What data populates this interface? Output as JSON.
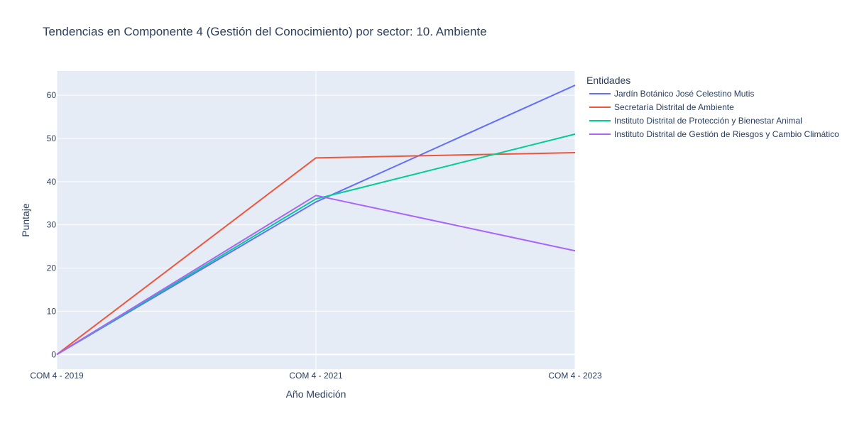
{
  "chart_data": {
    "type": "line",
    "title": "Tendencias en Componente 4 (Gestión del Conocimiento) por sector: 10. Ambiente",
    "xlabel": "Año Medición",
    "ylabel": "Puntaje",
    "categories": [
      "COM 4 - 2019",
      "COM 4 - 2021",
      "COM 4 - 2023"
    ],
    "ylim": [
      -3.4,
      65.6
    ],
    "yticks": [
      0,
      10,
      20,
      30,
      40,
      50,
      60
    ],
    "grid": true,
    "legend_title": "Entidades",
    "legend_position": "right",
    "series": [
      {
        "name": "Jardín Botánico José Celestino Mutis",
        "color": "#636efa",
        "values": [
          0,
          35.3,
          62.3
        ]
      },
      {
        "name": "Secretaría Distrital de Ambiente",
        "color": "#ef553b",
        "values": [
          0,
          45.5,
          46.7
        ]
      },
      {
        "name": "Instituto Distrital de Protección y Bienestar Animal",
        "color": "#00cc96",
        "values": [
          0,
          36.0,
          51.0
        ]
      },
      {
        "name": "Instituto Distrital de Gestión de Riesgos y Cambio Climático",
        "color": "#ab63fa",
        "values": [
          0,
          36.8,
          24.0
        ]
      }
    ]
  }
}
